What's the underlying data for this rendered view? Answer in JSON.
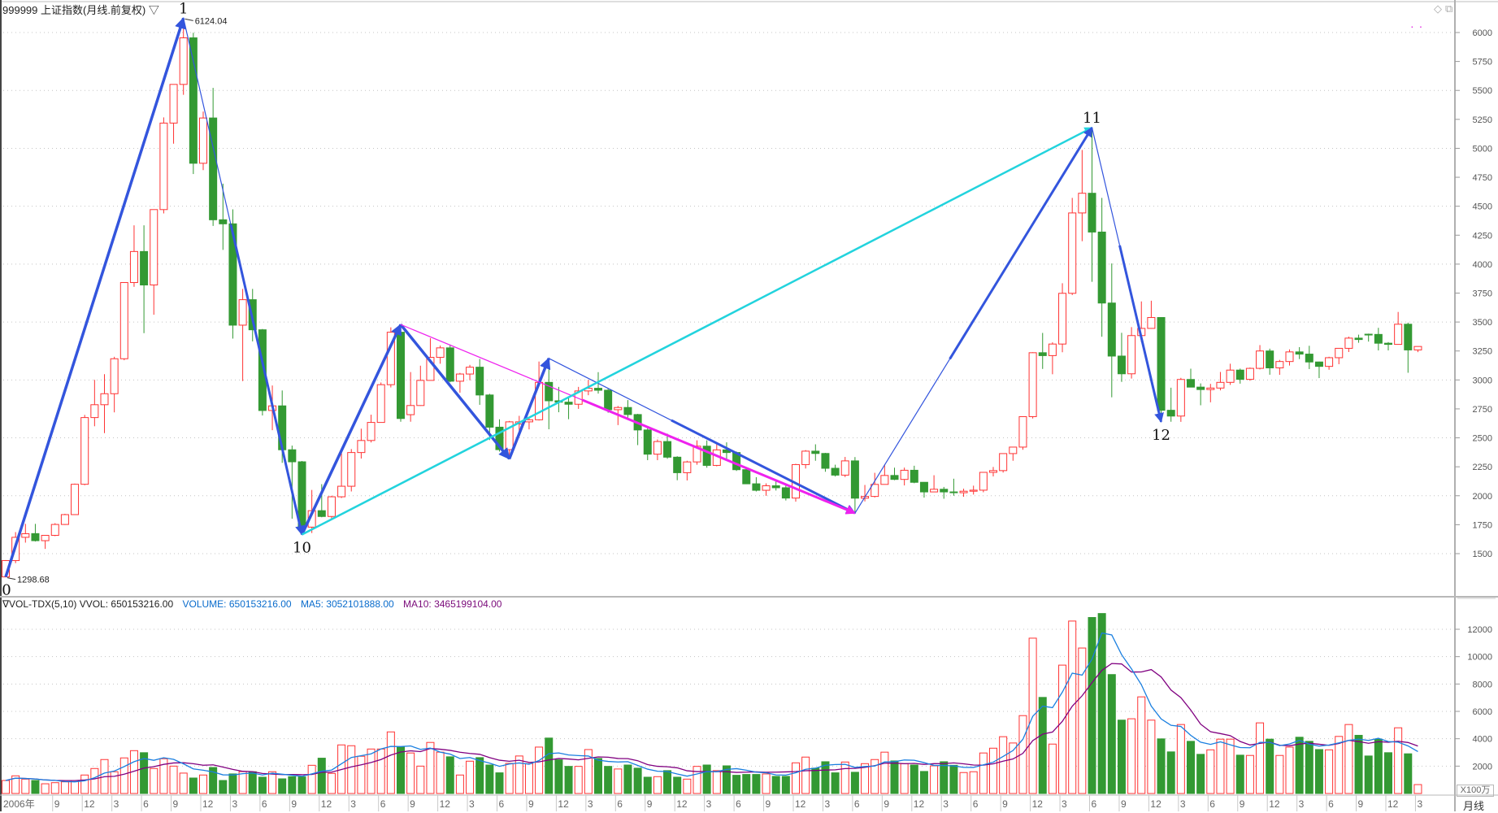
{
  "header": {
    "title": "999999 上证指数(月线.前复权) ▽"
  },
  "window_icons": [
    "diamond-icon",
    "restore-icon"
  ],
  "volume_header": {
    "name": "∇VOL-TDX(5,10) VVOL: 650153216.00",
    "volume": "VOLUME: 650153216.00",
    "ma5": "MA5: 3052101888.00",
    "ma10": "MA10: 3465199104.00"
  },
  "volume_unit": "X100万",
  "period_label": "月线",
  "colors": {
    "up": "#ff3333",
    "down": "#339933",
    "ma5": "#1a7fe0",
    "ma10": "#800080",
    "wave_blue": "#3355dd",
    "wave_cyan": "#22d3dd",
    "wave_magenta": "#ee22ee"
  },
  "chart_data": {
    "type": "candlestick",
    "price_axis": {
      "range": [
        1200,
        6200
      ],
      "ticks": [
        6000,
        5750,
        5500,
        5250,
        5000,
        4750,
        4500,
        4250,
        4000,
        3750,
        3500,
        3250,
        3000,
        2750,
        2500,
        2250,
        2000,
        1750,
        1500
      ],
      "grid_every": 500
    },
    "volume_axis": {
      "range": [
        0,
        12000
      ],
      "ticks": [
        12000,
        10000,
        8000,
        6000,
        4000,
        2000
      ],
      "grid": true
    },
    "candles_fields": [
      "open",
      "high",
      "low",
      "close",
      "volume"
    ],
    "candles": [
      [
        1299,
        1445,
        1298.68,
        1440,
        950
      ],
      [
        1440,
        1686,
        1418,
        1641,
        1290
      ],
      [
        1641,
        1757,
        1595,
        1672,
        1050
      ],
      [
        1673,
        1757,
        1605,
        1612,
        950
      ],
      [
        1612,
        1660,
        1541,
        1658,
        710
      ],
      [
        1658,
        1763,
        1651,
        1752,
        790
      ],
      [
        1752,
        1844,
        1748,
        1837,
        850
      ],
      [
        1837,
        2105,
        1836,
        2099,
        950
      ],
      [
        2099,
        2698,
        2091,
        2675,
        1350
      ],
      [
        2675,
        3001,
        2600,
        2786,
        1825
      ],
      [
        2786,
        3050,
        2541,
        2881,
        2480
      ],
      [
        2881,
        3200,
        2720,
        3183,
        1590
      ],
      [
        3183,
        3841,
        3170,
        3841,
        2600
      ],
      [
        3841,
        4335,
        3804,
        4109,
        3130
      ],
      [
        4109,
        4335,
        3404,
        3820,
        2980
      ],
      [
        3820,
        4472,
        3563,
        4471,
        1825
      ],
      [
        4471,
        5267,
        4438,
        5218,
        2540
      ],
      [
        5218,
        5552,
        5040,
        5552,
        2000
      ],
      [
        5552,
        6124.04,
        5462,
        5954,
        1490
      ],
      [
        5954,
        5998,
        4778,
        4871,
        1130
      ],
      [
        4871,
        5317,
        4812,
        5262,
        1350
      ],
      [
        5262,
        5522,
        4330,
        4383,
        1900
      ],
      [
        4383,
        4695,
        4123,
        4348,
        950
      ],
      [
        4348,
        4473,
        3357,
        3473,
        1430
      ],
      [
        3473,
        3786,
        2990,
        3693,
        1600
      ],
      [
        3693,
        3786,
        3333,
        3433,
        1590
      ],
      [
        3433,
        3440,
        2693,
        2736,
        1190
      ],
      [
        2736,
        2952,
        2566,
        2776,
        1590
      ],
      [
        2776,
        2909,
        2284,
        2397,
        1070
      ],
      [
        2397,
        2433,
        1802,
        2293,
        1230
      ],
      [
        2293,
        2300,
        1664.93,
        1729,
        1210
      ],
      [
        1729,
        2050,
        1678,
        1871,
        2060
      ],
      [
        1871,
        2100,
        1814,
        1821,
        2580
      ],
      [
        1821,
        2000,
        1800,
        1991,
        1470
      ],
      [
        1991,
        2402,
        1980,
        2082,
        3550
      ],
      [
        2082,
        2403,
        2037,
        2373,
        3490
      ],
      [
        2373,
        2579,
        2321,
        2477,
        2720
      ],
      [
        2477,
        2700,
        2460,
        2633,
        3250
      ],
      [
        2633,
        2978,
        2631,
        2959,
        3250
      ],
      [
        2959,
        3454,
        2935,
        3412,
        4500
      ],
      [
        3412,
        3478,
        2639,
        2667,
        3410
      ],
      [
        2700,
        3068,
        2639,
        2779,
        2960
      ],
      [
        2779,
        3123,
        2776,
        2996,
        2000
      ],
      [
        2996,
        3361,
        2996,
        3195,
        3730
      ],
      [
        3195,
        3297,
        3140,
        3277,
        3020
      ],
      [
        3277,
        3306,
        2980,
        2989,
        2680
      ],
      [
        2989,
        3061,
        2890,
        3051,
        1350
      ],
      [
        3051,
        3130,
        2997,
        3110,
        2360
      ],
      [
        3110,
        3181,
        2785,
        2870,
        2620
      ],
      [
        2870,
        2880,
        2481,
        2592,
        2080
      ],
      [
        2592,
        2660,
        2382,
        2398,
        1510
      ],
      [
        2398,
        2646,
        2319,
        2638,
        2200
      ],
      [
        2620,
        2690,
        2555,
        2638,
        2740
      ],
      [
        2638,
        2683,
        2573,
        2656,
        2180
      ],
      [
        2656,
        3159,
        2650,
        2979,
        3390
      ],
      [
        2979,
        3186,
        2574,
        2820,
        4050
      ],
      [
        2820,
        2940,
        2721,
        2808,
        2460
      ],
      [
        2808,
        2852,
        2661,
        2790,
        1980
      ],
      [
        2790,
        2940,
        2750,
        2905,
        1980
      ],
      [
        2905,
        3000,
        2868,
        2928,
        3210
      ],
      [
        2928,
        3067,
        2882,
        2911,
        2560
      ],
      [
        2911,
        2926,
        2717,
        2743,
        1980
      ],
      [
        2743,
        2775,
        2610,
        2762,
        1790
      ],
      [
        2762,
        2826,
        2675,
        2701,
        2080
      ],
      [
        2701,
        2707,
        2437,
        2568,
        1850
      ],
      [
        2568,
        2584,
        2307,
        2359,
        1190
      ],
      [
        2359,
        2486,
        2307,
        2468,
        1230
      ],
      [
        2468,
        2536,
        2319,
        2333,
        1670
      ],
      [
        2333,
        2341,
        2134,
        2199,
        1190
      ],
      [
        2199,
        2302,
        2132,
        2292,
        1050
      ],
      [
        2292,
        2478,
        2268,
        2428,
        1980
      ],
      [
        2428,
        2478,
        2242,
        2262,
        2080
      ],
      [
        2262,
        2453,
        2254,
        2396,
        1670
      ],
      [
        2396,
        2461,
        2318,
        2373,
        2020
      ],
      [
        2373,
        2382,
        2214,
        2225,
        1330
      ],
      [
        2225,
        2233,
        2100,
        2103,
        1390
      ],
      [
        2103,
        2160,
        2037,
        2047,
        1390
      ],
      [
        2047,
        2107,
        1999,
        2086,
        1430
      ],
      [
        2086,
        2133,
        2045,
        2069,
        1250
      ],
      [
        2069,
        2092,
        1959,
        1980,
        1250
      ],
      [
        1980,
        2276,
        1949,
        2269,
        2240
      ],
      [
        2269,
        2394,
        2235,
        2385,
        2660
      ],
      [
        2385,
        2444,
        2302,
        2365,
        1850
      ],
      [
        2365,
        2370,
        2207,
        2237,
        2320
      ],
      [
        2237,
        2268,
        2166,
        2178,
        1510
      ],
      [
        2178,
        2335,
        2161,
        2301,
        2300
      ],
      [
        2301,
        2334,
        1849.65,
        1979,
        1550
      ],
      [
        1979,
        2093,
        1951,
        1994,
        2180
      ],
      [
        1994,
        2198,
        1985,
        2098,
        2480
      ],
      [
        2098,
        2270,
        2097,
        2175,
        3020
      ],
      [
        2175,
        2242,
        2134,
        2141,
        2380
      ],
      [
        2141,
        2243,
        2089,
        2220,
        2180
      ],
      [
        2220,
        2259,
        2108,
        2116,
        2080
      ],
      [
        2116,
        2118,
        1984,
        2033,
        1610
      ],
      [
        2033,
        2177,
        2030,
        2056,
        2020
      ],
      [
        2056,
        2076,
        1974,
        2033,
        2320
      ],
      [
        2033,
        2147,
        2000,
        2026,
        2060
      ],
      [
        2026,
        2061,
        1991,
        2039,
        1530
      ],
      [
        2039,
        2087,
        2010,
        2048,
        1590
      ],
      [
        2048,
        2205,
        2030,
        2202,
        2960
      ],
      [
        2202,
        2248,
        2167,
        2217,
        3310
      ],
      [
        2217,
        2364,
        2200,
        2364,
        4150
      ],
      [
        2364,
        2420,
        2302,
        2420,
        3690
      ],
      [
        2420,
        2683,
        2397,
        2683,
        5690
      ],
      [
        2683,
        3239,
        2667,
        3235,
        11350
      ],
      [
        3235,
        3406,
        3095,
        3210,
        7020
      ],
      [
        3210,
        3325,
        3049,
        3310,
        3610
      ],
      [
        3310,
        3835,
        3239,
        3748,
        9380
      ],
      [
        3748,
        4572,
        3733,
        4442,
        12600
      ],
      [
        4442,
        4986,
        4198,
        4612,
        10630
      ],
      [
        4612,
        5178.19,
        3847,
        4277,
        12860
      ],
      [
        4277,
        4572,
        3373,
        3664,
        13150
      ],
      [
        3664,
        4006,
        2850,
        3206,
        8690
      ],
      [
        3206,
        3407,
        2983,
        3053,
        5360
      ],
      [
        3053,
        3456,
        3012,
        3383,
        5460
      ],
      [
        3383,
        3678,
        3327,
        3445,
        7060
      ],
      [
        3445,
        3684,
        3443,
        3539,
        5360
      ],
      [
        3539,
        3539,
        2638,
        2738,
        3990
      ],
      [
        2738,
        2933,
        2639,
        2688,
        3040
      ],
      [
        2688,
        3018,
        2638,
        3004,
        5040
      ],
      [
        3004,
        3097,
        2939,
        2938,
        3810
      ],
      [
        2938,
        2970,
        2781,
        2917,
        2860
      ],
      [
        2917,
        2966,
        2807,
        2930,
        3190
      ],
      [
        2930,
        3069,
        2910,
        2979,
        3970
      ],
      [
        2979,
        3140,
        2957,
        3085,
        3970
      ],
      [
        3085,
        3098,
        2968,
        3005,
        2800
      ],
      [
        3005,
        3107,
        2993,
        3100,
        2780
      ],
      [
        3100,
        3301,
        3091,
        3250,
        5160
      ],
      [
        3250,
        3270,
        3045,
        3104,
        3970
      ],
      [
        3104,
        3173,
        3044,
        3159,
        2780
      ],
      [
        3159,
        3264,
        3124,
        3242,
        3390
      ],
      [
        3242,
        3283,
        3180,
        3223,
        4110
      ],
      [
        3223,
        3295,
        3094,
        3155,
        3810
      ],
      [
        3155,
        3158,
        3016,
        3117,
        3210
      ],
      [
        3117,
        3200,
        3088,
        3192,
        3190
      ],
      [
        3192,
        3276,
        3136,
        3273,
        4170
      ],
      [
        3273,
        3374,
        3241,
        3361,
        5040
      ],
      [
        3361,
        3391,
        3321,
        3349,
        4250
      ],
      [
        3395,
        3400,
        3331,
        3390,
        2740
      ],
      [
        3393,
        3450,
        3255,
        3317,
        3970
      ],
      [
        3317,
        3327,
        3255,
        3307,
        2980
      ],
      [
        3307,
        3587,
        3306,
        3481,
        4800
      ],
      [
        3481,
        3495,
        3062,
        3259,
        2900
      ],
      [
        3259,
        3290,
        3240,
        3289,
        650.15
      ]
    ],
    "x_labels": [
      [
        0,
        "2006年"
      ],
      [
        5,
        "9"
      ],
      [
        8,
        "12"
      ],
      [
        11,
        "3"
      ],
      [
        14,
        "6"
      ],
      [
        17,
        "9"
      ],
      [
        20,
        "12"
      ],
      [
        23,
        "3"
      ],
      [
        26,
        "6"
      ],
      [
        29,
        "9"
      ],
      [
        32,
        "12"
      ],
      [
        35,
        "3"
      ],
      [
        38,
        "6"
      ],
      [
        41,
        "9"
      ],
      [
        44,
        "12"
      ],
      [
        47,
        "3"
      ],
      [
        50,
        "6"
      ],
      [
        53,
        "9"
      ],
      [
        56,
        "12"
      ],
      [
        59,
        "3"
      ],
      [
        62,
        "6"
      ],
      [
        65,
        "9"
      ],
      [
        68,
        "12"
      ],
      [
        71,
        "3"
      ],
      [
        74,
        "6"
      ],
      [
        77,
        "9"
      ],
      [
        80,
        "12"
      ],
      [
        83,
        "3"
      ],
      [
        86,
        "6"
      ],
      [
        89,
        "9"
      ],
      [
        92,
        "12"
      ],
      [
        95,
        "3"
      ],
      [
        98,
        "6"
      ],
      [
        101,
        "9"
      ],
      [
        104,
        "12"
      ],
      [
        107,
        "3"
      ],
      [
        110,
        "6"
      ],
      [
        113,
        "9"
      ],
      [
        116,
        "12"
      ],
      [
        119,
        "3"
      ],
      [
        122,
        "6"
      ],
      [
        125,
        "9"
      ],
      [
        128,
        "12"
      ],
      [
        131,
        "3"
      ],
      [
        134,
        "6"
      ],
      [
        137,
        "9"
      ],
      [
        140,
        "12"
      ],
      [
        143,
        "3"
      ]
    ],
    "points": [
      {
        "label": "0",
        "index": 0,
        "price": 1298.68,
        "side": "below",
        "value_label": "1298.68"
      },
      {
        "label": "1",
        "index": 18,
        "price": 6124.04,
        "side": "above",
        "value_label": "6124.04"
      },
      {
        "label": "10",
        "index": 30,
        "price": 1664.93,
        "side": "below"
      },
      {
        "label": "11",
        "index": 110,
        "price": 5178.19,
        "side": "above"
      },
      {
        "label": "12",
        "index": 117,
        "price": 2638,
        "side": "below"
      }
    ],
    "waves": [
      {
        "from": [
          0,
          1298.68
        ],
        "to": [
          18,
          6124.04
        ],
        "color": "wave_blue",
        "style": "thick"
      },
      {
        "from": [
          18,
          6124.04
        ],
        "to": [
          30,
          1664.93
        ],
        "color": "wave_blue",
        "style": "mixed"
      },
      {
        "from": [
          30,
          1664.93
        ],
        "to": [
          40,
          3478
        ],
        "color": "wave_blue",
        "style": "thick"
      },
      {
        "from": [
          40,
          3478
        ],
        "to": [
          51,
          2319
        ],
        "color": "wave_blue",
        "style": "thick"
      },
      {
        "from": [
          51,
          2319
        ],
        "to": [
          55,
          3186
        ],
        "color": "wave_blue",
        "style": "thick"
      },
      {
        "from": [
          55,
          3186
        ],
        "to": [
          86,
          1849.65
        ],
        "color": "wave_blue",
        "style": "mixed"
      },
      {
        "from": [
          40,
          3478
        ],
        "to": [
          86,
          1849.65
        ],
        "color": "wave_magenta",
        "style": "mixed"
      },
      {
        "from": [
          30,
          1664.93
        ],
        "to": [
          110,
          5178.19
        ],
        "color": "wave_cyan",
        "style": "medium"
      },
      {
        "from": [
          86,
          1849.65
        ],
        "to": [
          110,
          5178.19
        ],
        "color": "wave_blue",
        "style": "mixed"
      },
      {
        "from": [
          110,
          5178.19
        ],
        "to": [
          117,
          2638
        ],
        "color": "wave_blue",
        "style": "mixed"
      }
    ]
  }
}
